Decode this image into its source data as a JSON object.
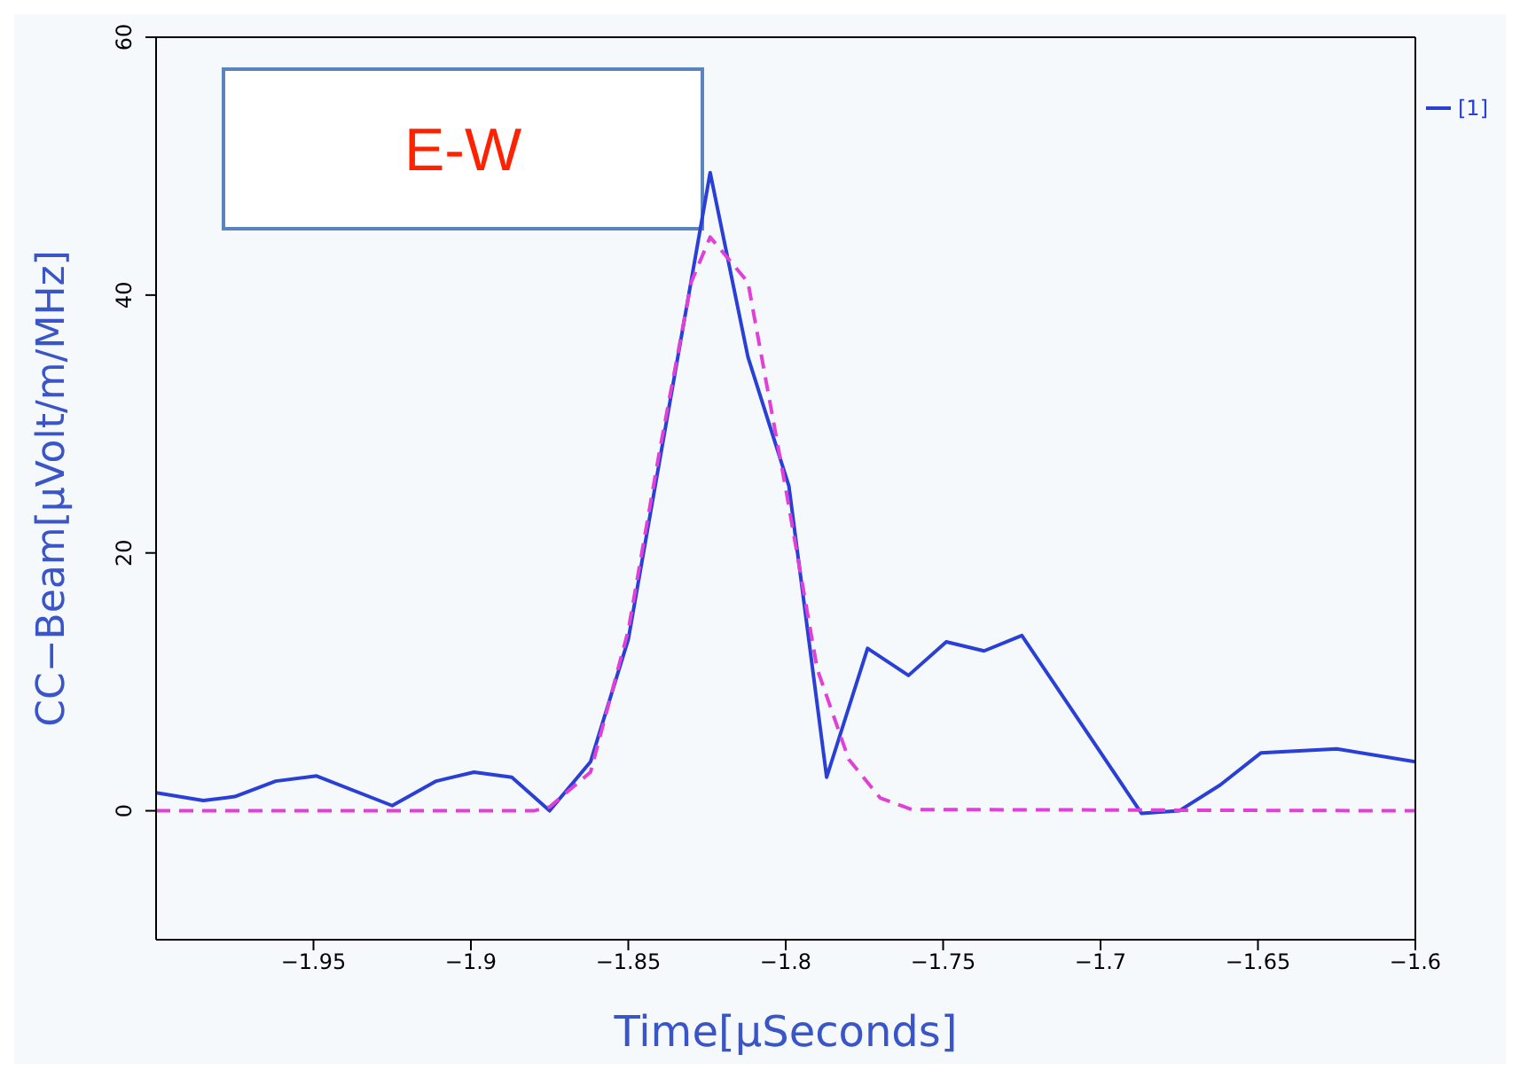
{
  "chart_data": {
    "type": "line",
    "xlabel": "Time[μSeconds]",
    "ylabel": "CC−Beam[μVolt/m/MHz]",
    "annotations": [
      "E-W"
    ],
    "xlim": [
      -2.0,
      -1.6
    ],
    "xticks": [
      -1.95,
      -1.9,
      -1.85,
      -1.8,
      -1.75,
      -1.7,
      -1.65,
      -1.6
    ],
    "ylim": [
      -10,
      60
    ],
    "yticks": [
      0,
      20,
      40,
      60
    ],
    "grid": false,
    "legend": "top right",
    "series": [
      {
        "name": "[1]",
        "color": "#2a3fd6",
        "line_style": "solid",
        "x": [
          -2.0,
          -1.985,
          -1.975,
          -1.962,
          -1.949,
          -1.925,
          -1.911,
          -1.899,
          -1.887,
          -1.875,
          -1.862,
          -1.85,
          -1.824,
          -1.812,
          -1.799,
          -1.787,
          -1.774,
          -1.761,
          -1.749,
          -1.737,
          -1.725,
          -1.687,
          -1.675,
          -1.662,
          -1.649,
          -1.625,
          -1.6
        ],
        "values": [
          1.4,
          0.8,
          1.1,
          2.3,
          2.7,
          0.4,
          2.3,
          3.0,
          2.6,
          0,
          3.8,
          13.3,
          49.5,
          35.2,
          25.2,
          2.6,
          12.6,
          10.5,
          13.1,
          12.4,
          13.6,
          -0.2,
          0,
          2,
          4.5,
          4.8,
          3.8
        ]
      },
      {
        "color": "#e040d8",
        "line_style": "dashed",
        "x": [
          -2.0,
          -1.88,
          -1.875,
          -1.862,
          -1.85,
          -1.84,
          -1.83,
          -1.824,
          -1.812,
          -1.8,
          -1.79,
          -1.78,
          -1.77,
          -1.76,
          -1.6
        ],
        "values": [
          0,
          0,
          0.3,
          3,
          14,
          28,
          41,
          44.5,
          41,
          25,
          11,
          4,
          1,
          0.1,
          0
        ]
      }
    ]
  }
}
